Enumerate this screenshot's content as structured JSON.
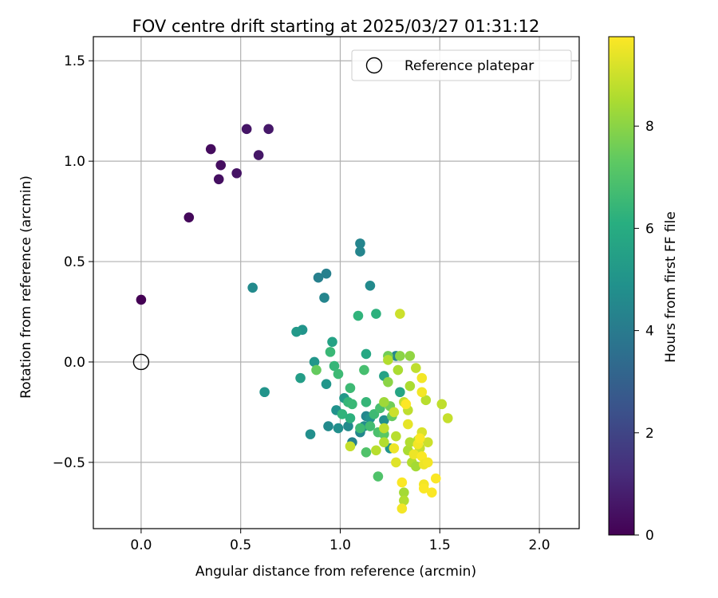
{
  "chart_data": {
    "type": "scatter",
    "title": "FOV centre drift starting at 2025/03/27 01:31:12",
    "xlabel": "Angular distance from reference (arcmin)",
    "ylabel": "Rotation from reference (arcmin)",
    "xlim": [
      -0.24,
      2.2
    ],
    "ylim": [
      -0.83,
      1.62
    ],
    "xticks": [
      0.0,
      0.5,
      1.0,
      1.5,
      2.0
    ],
    "xtick_labels": [
      "0.0",
      "0.5",
      "1.0",
      "1.5",
      "2.0"
    ],
    "yticks": [
      -0.5,
      0.0,
      0.5,
      1.0,
      1.5
    ],
    "ytick_labels": [
      "−0.5",
      "0.0",
      "0.5",
      "1.0",
      "1.5"
    ],
    "grid": true,
    "legend": {
      "position": "top-right",
      "entries": [
        "Reference platepar"
      ]
    },
    "reference_point": {
      "name": "Reference platepar",
      "x": 0.0,
      "y": 0.0
    },
    "colorbar": {
      "label": "Hours from first FF file",
      "colormap": "viridis",
      "range": [
        0,
        9.75
      ],
      "ticks": [
        0,
        2,
        4,
        6,
        8
      ],
      "tick_labels": [
        "0",
        "2",
        "4",
        "6",
        "8"
      ]
    },
    "points": [
      {
        "x": 0.0,
        "y": 0.31,
        "c": 0.0
      },
      {
        "x": 0.24,
        "y": 0.72,
        "c": 0.2
      },
      {
        "x": 0.35,
        "y": 1.06,
        "c": 0.3
      },
      {
        "x": 0.4,
        "y": 0.98,
        "c": 0.35
      },
      {
        "x": 0.39,
        "y": 0.91,
        "c": 0.4
      },
      {
        "x": 0.48,
        "y": 0.94,
        "c": 0.5
      },
      {
        "x": 0.53,
        "y": 1.16,
        "c": 0.55
      },
      {
        "x": 0.59,
        "y": 1.03,
        "c": 0.6
      },
      {
        "x": 0.64,
        "y": 1.16,
        "c": 0.65
      },
      {
        "x": 1.1,
        "y": 0.59,
        "c": 4.4
      },
      {
        "x": 1.1,
        "y": 0.55,
        "c": 4.4
      },
      {
        "x": 0.93,
        "y": 0.44,
        "c": 4.2
      },
      {
        "x": 0.89,
        "y": 0.42,
        "c": 4.2
      },
      {
        "x": 1.15,
        "y": 0.38,
        "c": 4.6
      },
      {
        "x": 0.56,
        "y": 0.37,
        "c": 4.6
      },
      {
        "x": 0.92,
        "y": 0.32,
        "c": 4.4
      },
      {
        "x": 0.81,
        "y": 0.16,
        "c": 5.0
      },
      {
        "x": 0.78,
        "y": 0.15,
        "c": 5.2
      },
      {
        "x": 0.96,
        "y": 0.1,
        "c": 5.6
      },
      {
        "x": 0.87,
        "y": 0.0,
        "c": 5.1
      },
      {
        "x": 0.8,
        "y": -0.08,
        "c": 5.4
      },
      {
        "x": 0.62,
        "y": -0.15,
        "c": 5.0
      },
      {
        "x": 0.93,
        "y": -0.11,
        "c": 5.1
      },
      {
        "x": 0.98,
        "y": -0.24,
        "c": 4.9
      },
      {
        "x": 1.02,
        "y": -0.18,
        "c": 5.2
      },
      {
        "x": 0.94,
        "y": -0.32,
        "c": 4.6
      },
      {
        "x": 0.99,
        "y": -0.33,
        "c": 4.8
      },
      {
        "x": 1.04,
        "y": -0.32,
        "c": 4.6
      },
      {
        "x": 0.85,
        "y": -0.36,
        "c": 4.8
      },
      {
        "x": 1.06,
        "y": -0.4,
        "c": 4.3
      },
      {
        "x": 1.1,
        "y": -0.35,
        "c": 4.5
      },
      {
        "x": 1.12,
        "y": -0.32,
        "c": 4.7
      },
      {
        "x": 1.13,
        "y": -0.27,
        "c": 4.5
      },
      {
        "x": 1.15,
        "y": -0.28,
        "c": 4.9
      },
      {
        "x": 1.22,
        "y": -0.29,
        "c": 4.8
      },
      {
        "x": 1.28,
        "y": 0.03,
        "c": 4.4
      },
      {
        "x": 1.25,
        "y": -0.43,
        "c": 5.0
      },
      {
        "x": 1.3,
        "y": -0.15,
        "c": 5.7
      },
      {
        "x": 1.22,
        "y": -0.07,
        "c": 5.6
      },
      {
        "x": 1.13,
        "y": 0.04,
        "c": 5.8
      },
      {
        "x": 1.09,
        "y": 0.23,
        "c": 6.3
      },
      {
        "x": 1.18,
        "y": 0.24,
        "c": 6.2
      },
      {
        "x": 0.95,
        "y": 0.05,
        "c": 6.5
      },
      {
        "x": 0.97,
        "y": -0.02,
        "c": 6.4
      },
      {
        "x": 0.99,
        "y": -0.06,
        "c": 6.6
      },
      {
        "x": 0.88,
        "y": -0.04,
        "c": 7.4
      },
      {
        "x": 1.12,
        "y": -0.04,
        "c": 6.8
      },
      {
        "x": 1.05,
        "y": -0.13,
        "c": 6.6
      },
      {
        "x": 1.04,
        "y": -0.2,
        "c": 6.4
      },
      {
        "x": 1.06,
        "y": -0.21,
        "c": 6.5
      },
      {
        "x": 1.13,
        "y": -0.2,
        "c": 6.4
      },
      {
        "x": 1.17,
        "y": -0.26,
        "c": 6.6
      },
      {
        "x": 1.2,
        "y": -0.23,
        "c": 6.8
      },
      {
        "x": 1.01,
        "y": -0.26,
        "c": 6.3
      },
      {
        "x": 1.05,
        "y": -0.28,
        "c": 6.2
      },
      {
        "x": 1.1,
        "y": -0.33,
        "c": 6.6
      },
      {
        "x": 1.15,
        "y": -0.32,
        "c": 6.7
      },
      {
        "x": 1.19,
        "y": -0.35,
        "c": 6.9
      },
      {
        "x": 1.13,
        "y": -0.45,
        "c": 7.0
      },
      {
        "x": 1.19,
        "y": -0.57,
        "c": 7.0
      },
      {
        "x": 1.22,
        "y": -0.36,
        "c": 7.2
      },
      {
        "x": 1.25,
        "y": -0.22,
        "c": 7.6
      },
      {
        "x": 1.26,
        "y": -0.27,
        "c": 7.4
      },
      {
        "x": 1.24,
        "y": 0.03,
        "c": 7.6
      },
      {
        "x": 1.3,
        "y": 0.03,
        "c": 8.0
      },
      {
        "x": 1.35,
        "y": 0.03,
        "c": 8.1
      },
      {
        "x": 1.24,
        "y": -0.1,
        "c": 8.0
      },
      {
        "x": 1.22,
        "y": -0.2,
        "c": 8.3
      },
      {
        "x": 1.29,
        "y": -0.04,
        "c": 8.5
      },
      {
        "x": 1.35,
        "y": -0.12,
        "c": 8.5
      },
      {
        "x": 1.24,
        "y": 0.01,
        "c": 8.6
      },
      {
        "x": 1.3,
        "y": 0.24,
        "c": 9.0
      },
      {
        "x": 1.38,
        "y": -0.03,
        "c": 8.8
      },
      {
        "x": 1.43,
        "y": -0.19,
        "c": 8.7
      },
      {
        "x": 1.51,
        "y": -0.21,
        "c": 8.8
      },
      {
        "x": 1.54,
        "y": -0.28,
        "c": 8.9
      },
      {
        "x": 1.05,
        "y": -0.42,
        "c": 8.9
      },
      {
        "x": 1.18,
        "y": -0.44,
        "c": 8.7
      },
      {
        "x": 1.22,
        "y": -0.4,
        "c": 8.6
      },
      {
        "x": 1.22,
        "y": -0.33,
        "c": 8.8
      },
      {
        "x": 1.27,
        "y": -0.25,
        "c": 9.0
      },
      {
        "x": 1.28,
        "y": -0.37,
        "c": 8.7
      },
      {
        "x": 1.32,
        "y": -0.2,
        "c": 8.9
      },
      {
        "x": 1.34,
        "y": -0.24,
        "c": 8.8
      },
      {
        "x": 1.34,
        "y": -0.44,
        "c": 8.5
      },
      {
        "x": 1.36,
        "y": -0.5,
        "c": 8.6
      },
      {
        "x": 1.38,
        "y": -0.52,
        "c": 8.4
      },
      {
        "x": 1.39,
        "y": -0.39,
        "c": 8.7
      },
      {
        "x": 1.4,
        "y": -0.43,
        "c": 8.9
      },
      {
        "x": 1.41,
        "y": -0.35,
        "c": 9.2
      },
      {
        "x": 1.35,
        "y": -0.4,
        "c": 8.6
      },
      {
        "x": 1.44,
        "y": -0.4,
        "c": 9.0
      },
      {
        "x": 1.32,
        "y": -0.65,
        "c": 8.4
      },
      {
        "x": 1.32,
        "y": -0.69,
        "c": 8.6
      },
      {
        "x": 1.27,
        "y": -0.43,
        "c": 9.5
      },
      {
        "x": 1.28,
        "y": -0.5,
        "c": 9.3
      },
      {
        "x": 1.31,
        "y": -0.6,
        "c": 9.7
      },
      {
        "x": 1.31,
        "y": -0.73,
        "c": 9.6
      },
      {
        "x": 1.34,
        "y": -0.31,
        "c": 9.4
      },
      {
        "x": 1.37,
        "y": -0.46,
        "c": 9.5
      },
      {
        "x": 1.39,
        "y": -0.41,
        "c": 9.6
      },
      {
        "x": 1.41,
        "y": -0.47,
        "c": 9.7
      },
      {
        "x": 1.41,
        "y": -0.08,
        "c": 9.6
      },
      {
        "x": 1.41,
        "y": -0.15,
        "c": 9.6
      },
      {
        "x": 1.42,
        "y": -0.51,
        "c": 9.5
      },
      {
        "x": 1.42,
        "y": -0.61,
        "c": 9.6
      },
      {
        "x": 1.42,
        "y": -0.63,
        "c": 9.7
      },
      {
        "x": 1.44,
        "y": -0.5,
        "c": 9.6
      },
      {
        "x": 1.46,
        "y": -0.65,
        "c": 9.7
      },
      {
        "x": 1.48,
        "y": -0.58,
        "c": 9.7
      },
      {
        "x": 1.4,
        "y": -0.38,
        "c": 9.7
      },
      {
        "x": 1.33,
        "y": -0.21,
        "c": 9.8
      }
    ]
  }
}
